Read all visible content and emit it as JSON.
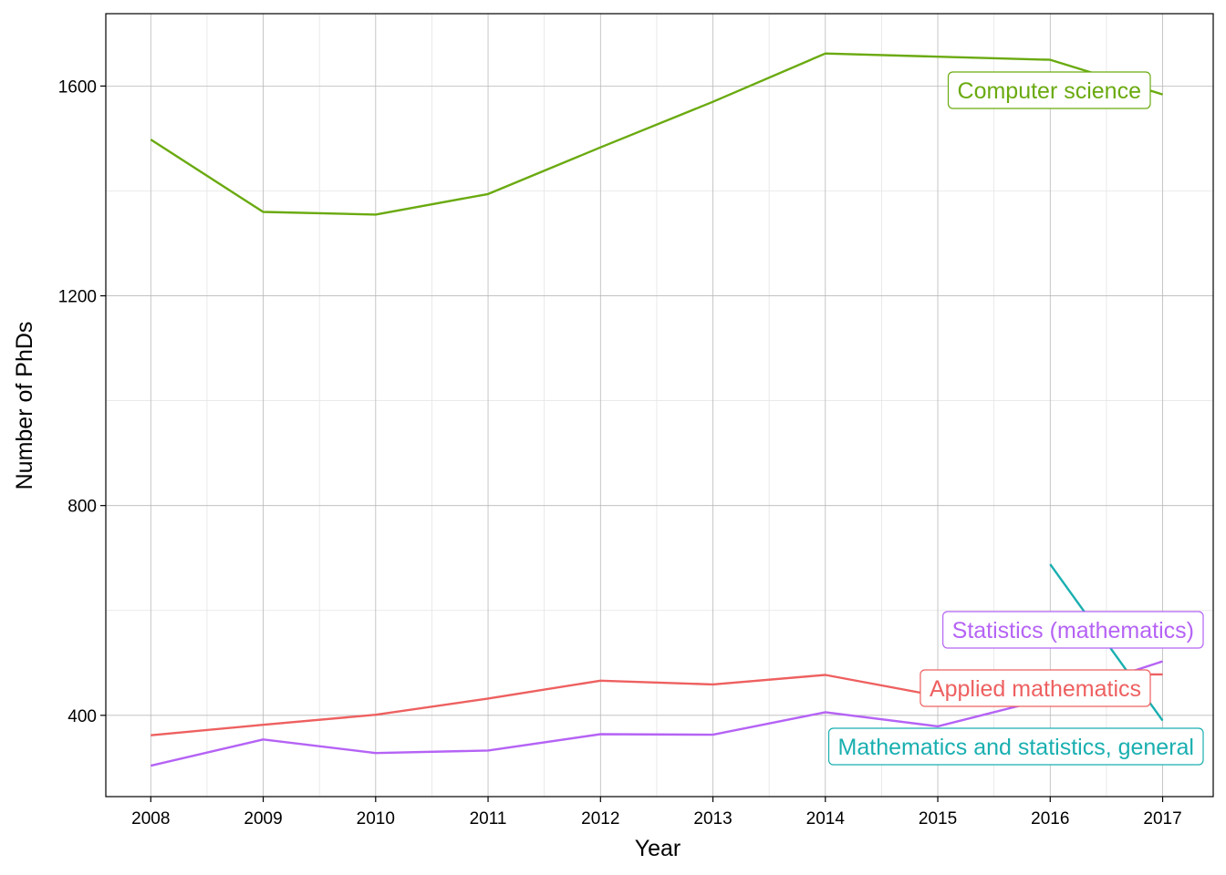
{
  "chart_data": {
    "type": "line",
    "title": "",
    "xlabel": "Year",
    "ylabel": "Number of PhDs",
    "x": [
      2008,
      2009,
      2010,
      2011,
      2012,
      2013,
      2014,
      2015,
      2016,
      2017
    ],
    "xlim": [
      2007.6,
      2017.45
    ],
    "ylim": [
      245,
      1738
    ],
    "y_ticks": [
      400,
      800,
      1200,
      1600
    ],
    "x_ticks": [
      2008,
      2009,
      2010,
      2011,
      2012,
      2013,
      2014,
      2015,
      2016,
      2017
    ],
    "grid": true,
    "legend": "none (direct labels at line ends)",
    "series": [
      {
        "name": "Computer science",
        "color": "#6aaa10",
        "x": [
          2008,
          2009,
          2010,
          2011,
          2012,
          2013,
          2014,
          2015,
          2016,
          2017
        ],
        "values": [
          1498,
          1360,
          1355,
          1394,
          1483,
          1570,
          1662,
          1656,
          1650,
          1584
        ]
      },
      {
        "name": "Statistics (mathematics)",
        "color": "#b563f5",
        "x": [
          2008,
          2009,
          2010,
          2011,
          2012,
          2013,
          2014,
          2015,
          2016,
          2017
        ],
        "values": [
          304,
          354,
          328,
          333,
          364,
          363,
          406,
          379,
          433,
          503
        ]
      },
      {
        "name": "Applied mathematics",
        "color": "#ee6060",
        "x": [
          2008,
          2009,
          2010,
          2011,
          2012,
          2013,
          2014,
          2015,
          2016,
          2017
        ],
        "values": [
          362,
          382,
          401,
          432,
          466,
          459,
          477,
          437,
          478,
          478
        ]
      },
      {
        "name": "Mathematics and statistics, general",
        "color": "#1aafb0",
        "x": [
          2016,
          2017
        ],
        "values": [
          688,
          390
        ]
      }
    ]
  }
}
